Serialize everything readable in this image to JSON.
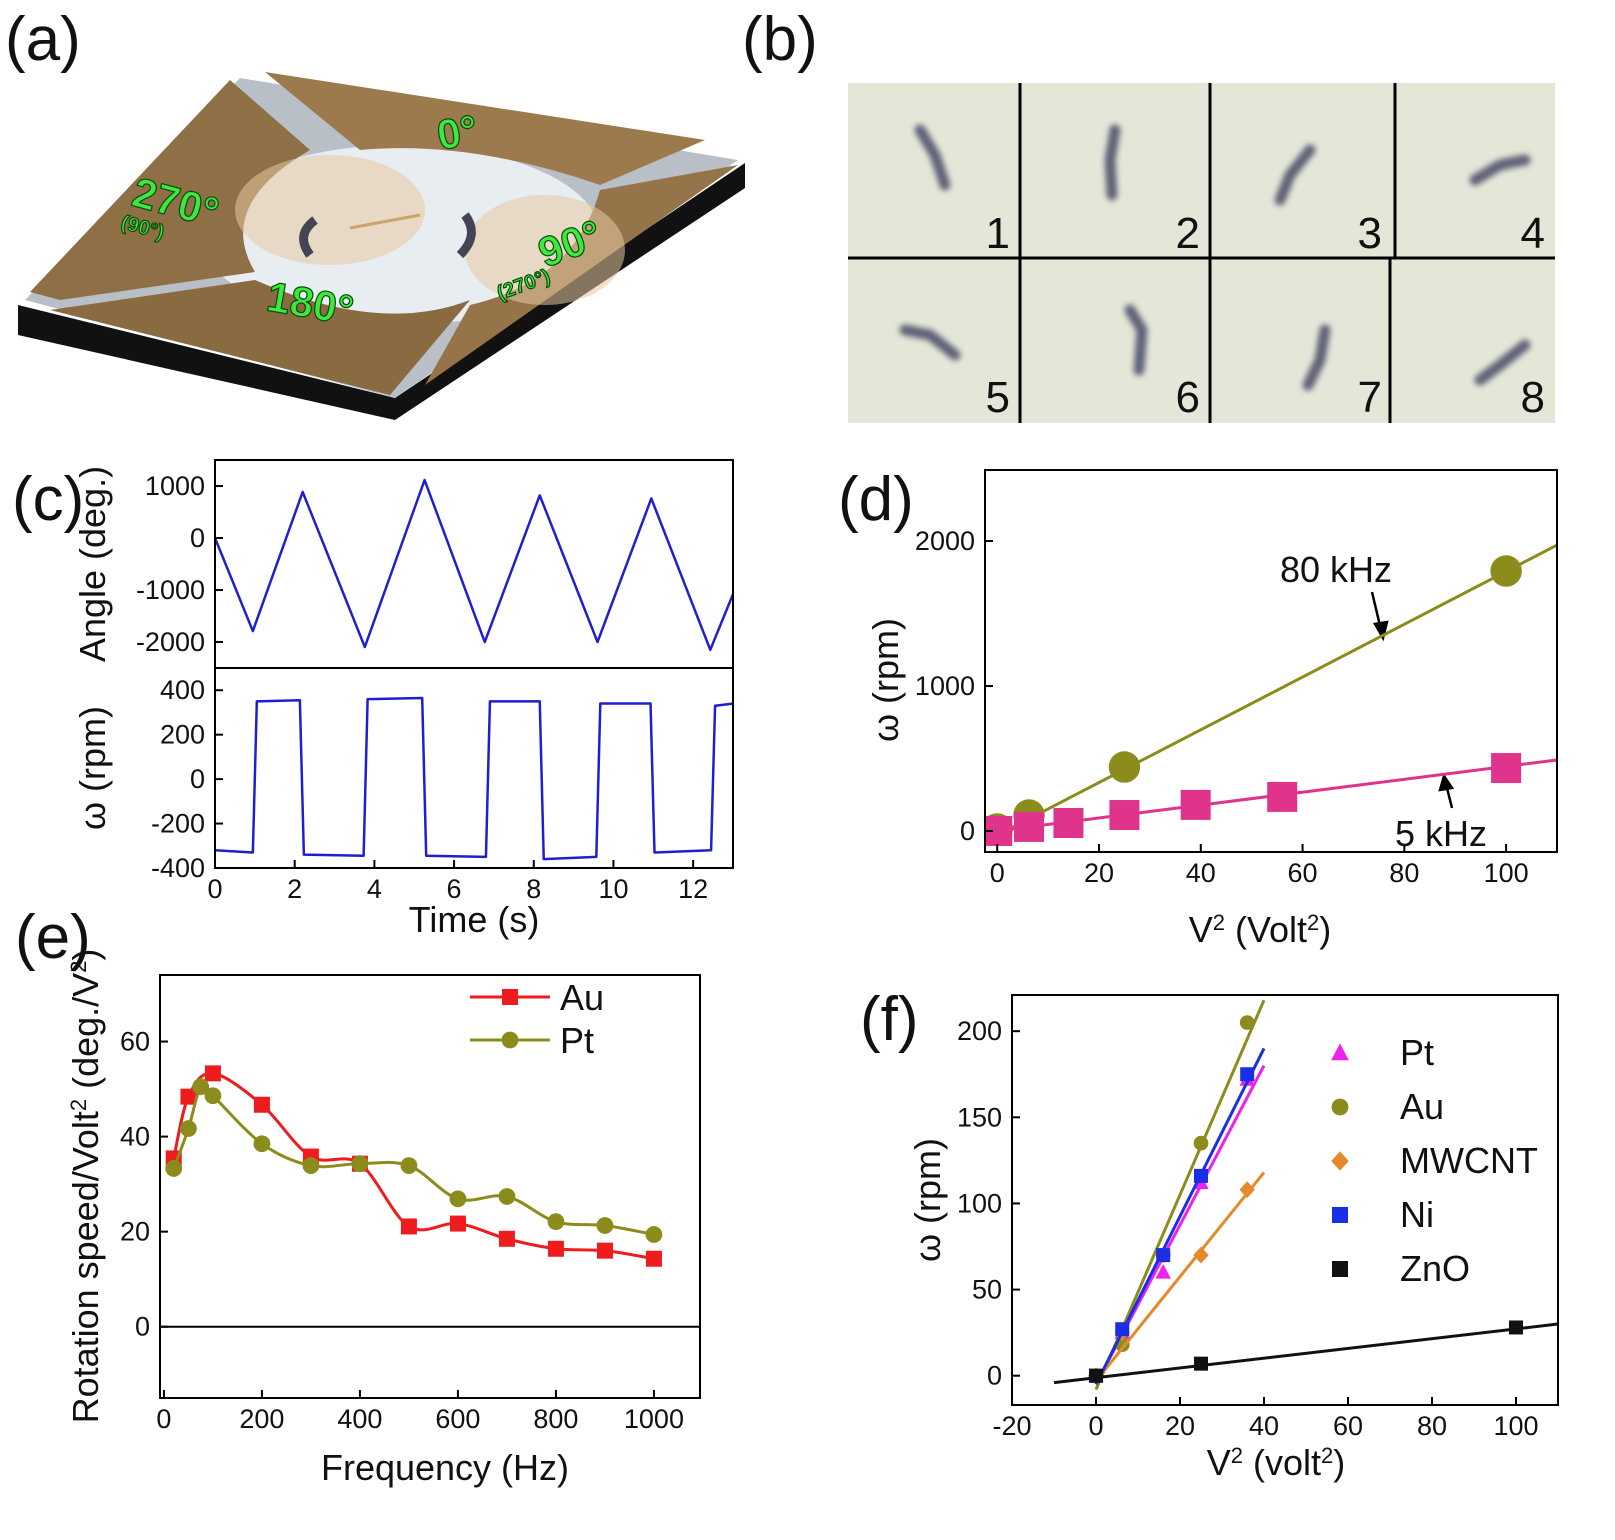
{
  "panel_labels": [
    "(a)",
    "(b)",
    "(c)",
    "(d)",
    "(e)",
    "(f)"
  ],
  "panel_a": {
    "labels": [
      "0°",
      "90°",
      "180°",
      "270°",
      "(90°)",
      "(270°)"
    ]
  },
  "panel_b": {
    "frame_numbers": [
      "1",
      "2",
      "3",
      "4",
      "5",
      "6",
      "7",
      "8"
    ]
  },
  "chart_data": [
    {
      "type": "line",
      "ylabel": "Angle (deg.)",
      "xlim": [
        0,
        13
      ],
      "ylim": [
        -2500,
        1500
      ],
      "yticks": [
        1000,
        0,
        -1000,
        -2000
      ],
      "series": [
        {
          "color": "#1f1fd0",
          "x": [
            0,
            0.95,
            2.2,
            3.76,
            5.26,
            6.77,
            8.15,
            9.6,
            10.95,
            12.43,
            13
          ],
          "values": [
            0,
            -1790,
            885,
            -2096,
            1115,
            -2000,
            820,
            -2000,
            760,
            -2150,
            -1080
          ]
        }
      ]
    },
    {
      "type": "line",
      "ylabel": "ω (rpm)",
      "xlabel": "Time (s)",
      "xlim": [
        0,
        13
      ],
      "ylim": [
        -400,
        500
      ],
      "yticks": [
        400,
        200,
        0,
        -200,
        -400
      ],
      "xticks": [
        0,
        2,
        4,
        6,
        8,
        10,
        12
      ],
      "series": [
        {
          "color": "#1f1fd0",
          "x": [
            0,
            0.95,
            1.05,
            2.13,
            2.23,
            3.73,
            3.83,
            5.2,
            5.3,
            6.8,
            6.9,
            8.15,
            8.25,
            9.57,
            9.67,
            10.93,
            11.03,
            12.45,
            12.55,
            13
          ],
          "values": [
            -320,
            -330,
            350,
            355,
            -340,
            -345,
            360,
            365,
            -345,
            -350,
            350,
            350,
            -360,
            -350,
            340,
            340,
            -330,
            -320,
            330,
            340
          ]
        }
      ]
    },
    {
      "type": "scatter",
      "ylabel": "ω (rpm)",
      "xlabel_parts": [
        "V",
        "2",
        " (Volt",
        "2",
        ")"
      ],
      "xlim": [
        -2.4,
        110
      ],
      "ylim": [
        -145,
        2490
      ],
      "xticks": [
        0,
        20,
        40,
        60,
        80,
        100
      ],
      "yticks": [
        0,
        1000,
        2000
      ],
      "series": [
        {
          "name": "80 kHz",
          "color": "#8c8c1c",
          "marker": "circle",
          "x": [
            0,
            6.25,
            25,
            100
          ],
          "values": [
            14,
            110,
            441,
            1793
          ],
          "fit": {
            "x": [
              0,
              110
            ],
            "values": [
              -30,
              1972
            ]
          }
        },
        {
          "name": "5 kHz",
          "color": "#e0338c",
          "marker": "square",
          "x": [
            0,
            6.25,
            14,
            25,
            39,
            56,
            100
          ],
          "values": [
            0,
            28,
            55,
            110,
            180,
            235,
            434
          ],
          "fit": {
            "x": [
              -2.4,
              110
            ],
            "values": [
              -10,
              490
            ]
          }
        }
      ]
    },
    {
      "type": "line",
      "smooth": true,
      "zero_line": true,
      "ylabel_parts": [
        "Rotation speed/Volt",
        "2",
        " (deg./V",
        "2",
        ")"
      ],
      "xlabel": "Frequency (Hz)",
      "xlim": [
        -8,
        1094
      ],
      "ylim": [
        -15,
        74
      ],
      "xticks": [
        0,
        200,
        400,
        600,
        800,
        1000
      ],
      "yticks": [
        0,
        20,
        40,
        60
      ],
      "series": [
        {
          "name": "Au",
          "color": "#ee1c1c",
          "marker": "square",
          "x": [
            20,
            50,
            100,
            200,
            300,
            400,
            500,
            600,
            700,
            800,
            900,
            1000
          ],
          "values": [
            35.4,
            48.4,
            53.3,
            46.7,
            35.8,
            34.3,
            21.1,
            21.7,
            18.5,
            16.4,
            16,
            14.3
          ]
        },
        {
          "name": "Pt",
          "color": "#8c8c1c",
          "marker": "circle",
          "x": [
            20,
            50,
            75,
            100,
            200,
            300,
            400,
            500,
            600,
            700,
            800,
            900,
            1000
          ],
          "values": [
            33.3,
            41.7,
            50.5,
            48.6,
            38.5,
            33.9,
            34.3,
            33.9,
            26.9,
            27.4,
            22.1,
            21.3,
            19.4
          ]
        }
      ]
    },
    {
      "type": "scatter",
      "ylabel": "ω (rpm)",
      "xlabel_parts": [
        "V",
        "2",
        " (volt",
        "2",
        ")"
      ],
      "xlim": [
        -20,
        110
      ],
      "ylim": [
        -17,
        221
      ],
      "xticks": [
        -20,
        0,
        20,
        40,
        60,
        80,
        100
      ],
      "yticks": [
        0,
        50,
        100,
        150,
        200
      ],
      "series": [
        {
          "name": "Pt",
          "color": "#ee22ee",
          "marker": "triangle",
          "x": [
            0,
            6.25,
            16,
            25,
            36
          ],
          "values": [
            0,
            25,
            60,
            112,
            172
          ],
          "fit": {
            "x": [
              0,
              40
            ],
            "values": [
              -5,
              180
            ]
          }
        },
        {
          "name": "Au",
          "color": "#8c8c1c",
          "marker": "circle",
          "x": [
            0,
            6.25,
            16,
            25,
            36
          ],
          "values": [
            0,
            18,
            70,
            135,
            205
          ],
          "fit": {
            "x": [
              0,
              40
            ],
            "values": [
              -8,
              218
            ]
          }
        },
        {
          "name": "MWCNT",
          "color": "#e5892a",
          "marker": "diamond",
          "x": [
            0,
            6.25,
            25,
            36
          ],
          "values": [
            0,
            25,
            70,
            108
          ],
          "fit": {
            "x": [
              0,
              40
            ],
            "values": [
              -3,
              118
            ]
          }
        },
        {
          "name": "Ni",
          "color": "#1a2ee6",
          "marker": "square",
          "x": [
            0,
            6.25,
            16,
            25,
            36
          ],
          "values": [
            0,
            27,
            70,
            116,
            175
          ],
          "fit": {
            "x": [
              0,
              40
            ],
            "values": [
              -5,
              190
            ]
          }
        },
        {
          "name": "ZnO",
          "color": "#111111",
          "marker": "square",
          "x": [
            0,
            25,
            100
          ],
          "values": [
            0,
            7,
            28
          ],
          "fit": {
            "x": [
              -10,
              110
            ],
            "values": [
              -4,
              30
            ]
          }
        }
      ]
    }
  ]
}
